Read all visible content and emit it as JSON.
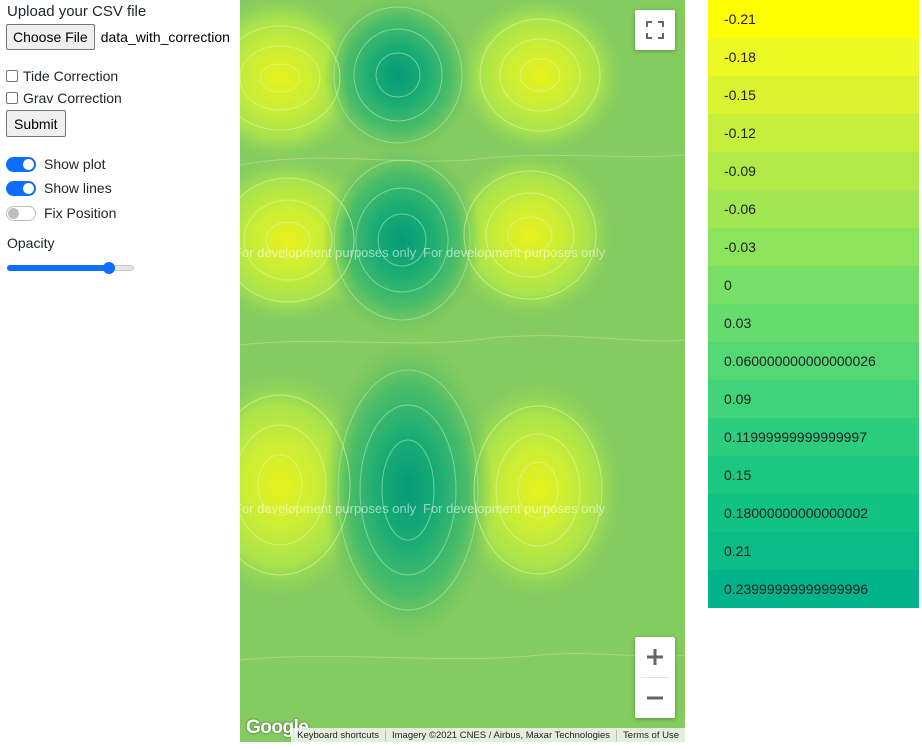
{
  "controls": {
    "upload_label": "Upload your CSV file",
    "choose_file_label": "Choose File",
    "file_name": "data_with_correction",
    "tide_label": "Tide Correction",
    "tide_checked": false,
    "grav_label": "Grav Correction",
    "grav_checked": false,
    "submit_label": "Submit",
    "show_plot_label": "Show plot",
    "show_plot_on": true,
    "show_lines_label": "Show lines",
    "show_lines_on": true,
    "fix_position_label": "Fix Position",
    "fix_position_on": false,
    "opacity_label": "Opacity",
    "opacity_value": 0.8
  },
  "map": {
    "watermark_text": "For development purposes only",
    "google_label": "Google",
    "attribution": {
      "shortcuts": "Keyboard shortcuts",
      "imagery": "Imagery ©2021 CNES / Airbus, Maxar Technologies",
      "terms": "Terms of Use"
    },
    "zoom_in_label": "+",
    "zoom_out_label": "−"
  },
  "legend": [
    {
      "label": "-0.21",
      "color": "#ffff00"
    },
    {
      "label": "-0.18",
      "color": "#ecf922"
    },
    {
      "label": "-0.15",
      "color": "#daf330"
    },
    {
      "label": "-0.12",
      "color": "#c6ef3b"
    },
    {
      "label": "-0.09",
      "color": "#b1ea46"
    },
    {
      "label": "-0.06",
      "color": "#a0e753"
    },
    {
      "label": "-0.03",
      "color": "#8ce45d"
    },
    {
      "label": "0",
      "color": "#79e067"
    },
    {
      "label": "0.03",
      "color": "#66dc6e"
    },
    {
      "label": "0.060000000000000026",
      "color": "#53d874"
    },
    {
      "label": "0.09",
      "color": "#40d379"
    },
    {
      "label": "0.11999999999999997",
      "color": "#2ccd7c"
    },
    {
      "label": "0.15",
      "color": "#1cc77f"
    },
    {
      "label": "0.18000000000000002",
      "color": "#10c283"
    },
    {
      "label": "0.21",
      "color": "#0bbc86"
    },
    {
      "label": "0.23999999999999996",
      "color": "#00b38a"
    }
  ]
}
